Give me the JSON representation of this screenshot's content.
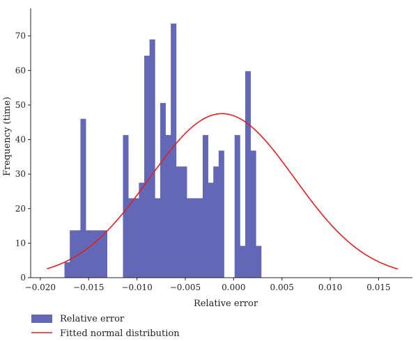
{
  "chart_data": {
    "type": "bar",
    "title": "",
    "xlabel": "Relative error",
    "ylabel": "Frequency (time)",
    "xlim": [
      -0.021,
      0.0185
    ],
    "ylim": [
      0,
      78
    ],
    "x_ticks": [
      {
        "value": -0.02,
        "label": "−0.020"
      },
      {
        "value": -0.015,
        "label": "−0.015"
      },
      {
        "value": -0.01,
        "label": "−0.010"
      },
      {
        "value": -0.005,
        "label": "−0.005"
      },
      {
        "value": 0.0,
        "label": "0.000"
      },
      {
        "value": 0.005,
        "label": "0.005"
      },
      {
        "value": 0.01,
        "label": "0.010"
      },
      {
        "value": 0.015,
        "label": "0.015"
      }
    ],
    "y_ticks": [
      0,
      10,
      20,
      30,
      40,
      50,
      60,
      70
    ],
    "grid": false,
    "legend_position": "bottom-left",
    "series": [
      {
        "name": "Relative error",
        "type": "histogram",
        "color": "#6268b5",
        "bin_width": 0.00055,
        "bins": [
          {
            "x0": -0.0175,
            "value": 4.5
          },
          {
            "x0": -0.01695,
            "value": 13.7
          },
          {
            "x0": -0.0164,
            "value": 13.7
          },
          {
            "x0": -0.01585,
            "value": 46
          },
          {
            "x0": -0.0153,
            "value": 13.7
          },
          {
            "x0": -0.01475,
            "value": 13.7
          },
          {
            "x0": -0.0142,
            "value": 13.7
          },
          {
            "x0": -0.01365,
            "value": 13.7
          },
          {
            "x0": -0.0131,
            "value": 0
          },
          {
            "x0": -0.01255,
            "value": 0
          },
          {
            "x0": -0.012,
            "value": 0
          },
          {
            "x0": -0.01145,
            "value": 41.3
          },
          {
            "x0": -0.0109,
            "value": 23
          },
          {
            "x0": -0.01035,
            "value": 23
          },
          {
            "x0": -0.0098,
            "value": 27.5
          },
          {
            "x0": -0.00925,
            "value": 64.3
          },
          {
            "x0": -0.0087,
            "value": 69
          },
          {
            "x0": -0.00815,
            "value": 23
          },
          {
            "x0": -0.0076,
            "value": 50.6
          },
          {
            "x0": -0.00705,
            "value": 41.3
          },
          {
            "x0": -0.0065,
            "value": 73.6
          },
          {
            "x0": -0.00595,
            "value": 32.2
          },
          {
            "x0": -0.0054,
            "value": 32.2
          },
          {
            "x0": -0.00485,
            "value": 23
          },
          {
            "x0": -0.0043,
            "value": 23
          },
          {
            "x0": -0.00375,
            "value": 23
          },
          {
            "x0": -0.0032,
            "value": 41.3
          },
          {
            "x0": -0.00265,
            "value": 27.5
          },
          {
            "x0": -0.0021,
            "value": 32.2
          },
          {
            "x0": -0.00155,
            "value": 36.8
          },
          {
            "x0": -0.001,
            "value": 0
          },
          {
            "x0": -0.00045,
            "value": 0
          },
          {
            "x0": 0.0001,
            "value": 41.3
          },
          {
            "x0": 0.00065,
            "value": 9.2
          },
          {
            "x0": 0.0012,
            "value": 59.8
          },
          {
            "x0": 0.00175,
            "value": 36.8
          },
          {
            "x0": 0.0023,
            "value": 9.2
          }
        ]
      },
      {
        "name": "Fitted normal distribution",
        "type": "line",
        "color": "#e02020",
        "x_range": [
          -0.0193,
          0.017
        ],
        "mean": -0.0012,
        "std": 0.0075,
        "peak": 47.5
      }
    ]
  }
}
